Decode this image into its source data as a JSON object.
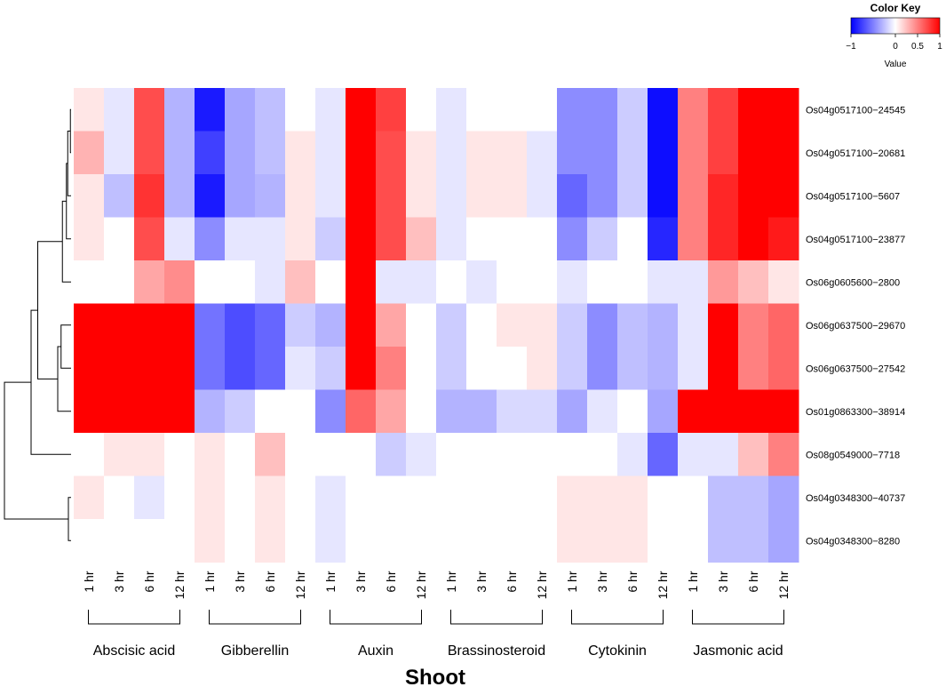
{
  "chart_data": {
    "type": "heatmap",
    "title": "Shoot",
    "color_key": {
      "title": "Color Key",
      "axis_label": "Value",
      "ticks": [
        "−1",
        "0",
        "0.5",
        "1"
      ],
      "tick_values": [
        -1,
        0,
        0.5,
        1
      ],
      "range": [
        -1,
        1
      ],
      "low_color": "#0000ff",
      "mid_color": "#ffffff",
      "high_color": "#ff0000"
    },
    "columns": [
      "1 hr",
      "3 hr",
      "6 hr",
      "12 hr",
      "1 hr",
      "3 hr",
      "6 hr",
      "12 hr",
      "1 hr",
      "3 hr",
      "6 hr",
      "12 hr",
      "1 hr",
      "3 hr",
      "6 hr",
      "12 hr",
      "1 hr",
      "3 hr",
      "6 hr",
      "12 hr",
      "1 hr",
      "3 hr",
      "6 hr",
      "12 hr"
    ],
    "groups": [
      "Abscisic acid",
      "Gibberellin",
      "Auxin",
      "Brassinosteroid",
      "Cytokinin",
      "Jasmonic acid"
    ],
    "group_size": 4,
    "rows": [
      "Os04g0517100−24545",
      "Os04g0517100−20681",
      "Os04g0517100−5607",
      "Os04g0517100−23877",
      "Os06g0605600−2800",
      "Os06g0637500−29670",
      "Os06g0637500−27542",
      "Os01g0863300−38914",
      "Os08g0549000−7718",
      "Os04g0348300−40737",
      "Os04g0348300−8280"
    ],
    "values": [
      [
        0.1,
        -0.1,
        0.7,
        -0.3,
        -0.9,
        -0.35,
        -0.25,
        0,
        -0.1,
        1,
        0.75,
        0,
        -0.1,
        0,
        0,
        0,
        -0.45,
        -0.45,
        -0.2,
        -0.95,
        0.5,
        0.75,
        1,
        1
      ],
      [
        0.3,
        -0.1,
        0.7,
        -0.3,
        -0.75,
        -0.35,
        -0.25,
        0.1,
        -0.1,
        1,
        0.7,
        0.1,
        -0.1,
        0.1,
        0.1,
        -0.1,
        -0.45,
        -0.45,
        -0.2,
        -0.95,
        0.5,
        0.75,
        1,
        1
      ],
      [
        0.1,
        -0.25,
        0.8,
        -0.3,
        -0.9,
        -0.35,
        -0.3,
        0.1,
        -0.1,
        1,
        0.7,
        0.1,
        -0.1,
        0.1,
        0.1,
        -0.1,
        -0.6,
        -0.45,
        -0.2,
        -0.95,
        0.5,
        0.85,
        1,
        1
      ],
      [
        0.1,
        0,
        0.7,
        -0.1,
        -0.45,
        -0.1,
        -0.1,
        0.1,
        -0.2,
        1,
        0.7,
        0.25,
        -0.1,
        0,
        0,
        0,
        -0.45,
        -0.2,
        0,
        -0.85,
        0.5,
        0.85,
        1,
        0.9
      ],
      [
        0,
        0,
        0.35,
        0.45,
        0,
        0,
        -0.1,
        0.25,
        0,
        1,
        -0.1,
        -0.1,
        0,
        -0.1,
        0,
        0,
        -0.1,
        0,
        0,
        -0.1,
        -0.1,
        0.4,
        0.25,
        0.1
      ],
      [
        1,
        1,
        1,
        1,
        -0.55,
        -0.7,
        -0.6,
        -0.2,
        -0.3,
        1,
        0.35,
        0,
        -0.2,
        0,
        0.1,
        0.1,
        -0.2,
        -0.45,
        -0.25,
        -0.3,
        -0.1,
        1,
        0.5,
        0.6
      ],
      [
        1,
        1,
        1,
        1,
        -0.55,
        -0.7,
        -0.6,
        -0.1,
        -0.2,
        1,
        0.5,
        0,
        -0.2,
        0,
        0,
        0.1,
        -0.2,
        -0.45,
        -0.25,
        -0.3,
        -0.1,
        1,
        0.5,
        0.6
      ],
      [
        1,
        1,
        1,
        1,
        -0.3,
        -0.2,
        0,
        0,
        -0.45,
        0.6,
        0.35,
        0,
        -0.3,
        -0.3,
        -0.15,
        -0.15,
        -0.35,
        -0.1,
        0,
        -0.35,
        1,
        1,
        1,
        1
      ],
      [
        0,
        0.1,
        0.1,
        0,
        0.1,
        0,
        0.25,
        0,
        0,
        0,
        -0.2,
        -0.1,
        0,
        0,
        0,
        0,
        0,
        0,
        -0.1,
        -0.6,
        -0.1,
        -0.1,
        0.25,
        0.5
      ],
      [
        0.1,
        0,
        -0.1,
        0,
        0.1,
        0,
        0.1,
        0,
        -0.1,
        0,
        0,
        0,
        0,
        0,
        0,
        0,
        0.1,
        0.1,
        0.1,
        0,
        0,
        -0.25,
        -0.25,
        -0.35
      ],
      [
        0,
        0,
        0,
        0,
        0.1,
        0,
        0.1,
        0,
        -0.1,
        0,
        0,
        0,
        0,
        0,
        0,
        0,
        0.1,
        0.1,
        0.1,
        0,
        0,
        -0.25,
        -0.25,
        -0.35
      ]
    ],
    "dendrogram": {
      "leaf_order": [
        0,
        1,
        2,
        3,
        4,
        5,
        6,
        7,
        8,
        9,
        10
      ],
      "merges": [
        [
          0,
          1,
          0.01
        ],
        [
          -1,
          2,
          0.05
        ],
        [
          -2,
          3,
          0.07
        ],
        [
          -3,
          4,
          0.13
        ],
        [
          5,
          6,
          0.15
        ],
        [
          -5,
          7,
          0.2
        ],
        [
          -4,
          -6,
          0.5
        ],
        [
          -7,
          8,
          0.6
        ],
        [
          9,
          10,
          0.04
        ],
        [
          -8,
          -9,
          1.0
        ]
      ]
    }
  }
}
